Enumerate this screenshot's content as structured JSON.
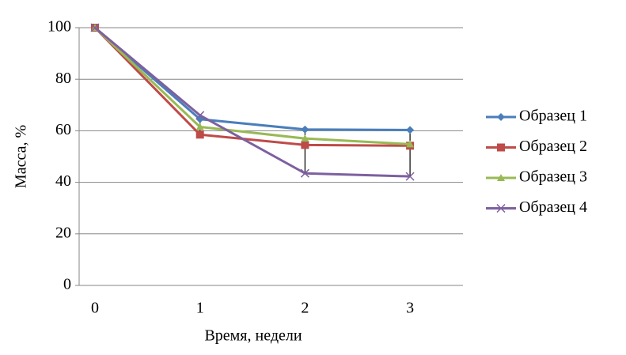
{
  "chart_data": {
    "type": "line",
    "x_label": "Время, недели",
    "y_label": "Масса, %",
    "categories": [
      "0",
      "1",
      "2",
      "3"
    ],
    "series": [
      {
        "name": "Образец 1",
        "color": "#4a7ebb",
        "marker": "diamond",
        "values": [
          100,
          64.5,
          60.5,
          60.3
        ]
      },
      {
        "name": "Образец 2",
        "color": "#be4b48",
        "marker": "square",
        "values": [
          100,
          58.5,
          54.5,
          54.2
        ]
      },
      {
        "name": "Образец 3",
        "color": "#98b954",
        "marker": "triangle",
        "values": [
          100,
          61.5,
          57,
          54.8
        ]
      },
      {
        "name": "Образец 4",
        "color": "#7d60a0",
        "marker": "x",
        "values": [
          100,
          66,
          43.5,
          42.3
        ]
      }
    ],
    "ylim": [
      0,
      100
    ],
    "yticks": [
      0,
      20,
      40,
      60,
      80,
      100
    ],
    "grid": true,
    "high_low_lines": true,
    "legend": "right"
  }
}
